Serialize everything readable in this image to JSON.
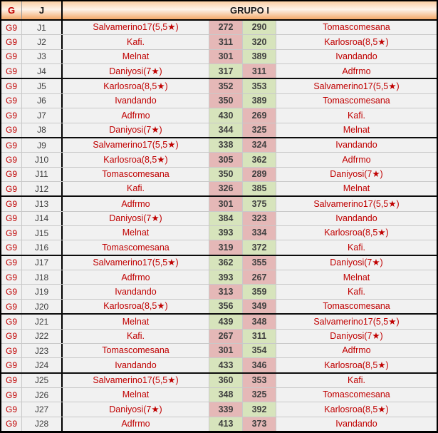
{
  "table": {
    "header": {
      "col_g": "G",
      "col_j": "J",
      "group_title": "GRUPO I"
    },
    "colors": {
      "name_text": "#c00000",
      "score_text": "#3f3f3f",
      "win_bg": "#d7e4bc",
      "loss_bg": "#e5b8b7",
      "header_orange": "#f3a868",
      "row_bg": "#f1f1f1",
      "grid_line": "#c9c9c9",
      "block_line": "#000000"
    },
    "rows": [
      {
        "g": "G9",
        "j": "J1",
        "home": "Salvamerino17(5,5★)",
        "home_score": "272",
        "away_score": "290",
        "away": "Tomascomesana",
        "home_result": "loss",
        "away_result": "win"
      },
      {
        "g": "G9",
        "j": "J2",
        "home": "Kafi.",
        "home_score": "311",
        "away_score": "320",
        "away": "Karlosroa(8,5★)",
        "home_result": "loss",
        "away_result": "win"
      },
      {
        "g": "G9",
        "j": "J3",
        "home": "Melnat",
        "home_score": "301",
        "away_score": "389",
        "away": "Ivandando",
        "home_result": "loss",
        "away_result": "win"
      },
      {
        "g": "G9",
        "j": "J4",
        "home": "Daniyosi(7★)",
        "home_score": "317",
        "away_score": "311",
        "away": "Adfrmo",
        "home_result": "win",
        "away_result": "loss"
      },
      {
        "g": "G9",
        "j": "J5",
        "home": "Karlosroa(8,5★)",
        "home_score": "352",
        "away_score": "353",
        "away": "Salvamerino17(5,5★)",
        "home_result": "loss",
        "away_result": "win"
      },
      {
        "g": "G9",
        "j": "J6",
        "home": "Ivandando",
        "home_score": "350",
        "away_score": "389",
        "away": "Tomascomesana",
        "home_result": "loss",
        "away_result": "win"
      },
      {
        "g": "G9",
        "j": "J7",
        "home": "Adfrmo",
        "home_score": "430",
        "away_score": "269",
        "away": "Kafi.",
        "home_result": "win",
        "away_result": "loss"
      },
      {
        "g": "G9",
        "j": "J8",
        "home": "Daniyosi(7★)",
        "home_score": "344",
        "away_score": "325",
        "away": "Melnat",
        "home_result": "win",
        "away_result": "loss"
      },
      {
        "g": "G9",
        "j": "J9",
        "home": "Salvamerino17(5,5★)",
        "home_score": "338",
        "away_score": "324",
        "away": "Ivandando",
        "home_result": "win",
        "away_result": "loss"
      },
      {
        "g": "G9",
        "j": "J10",
        "home": "Karlosroa(8,5★)",
        "home_score": "305",
        "away_score": "362",
        "away": "Adfrmo",
        "home_result": "loss",
        "away_result": "win"
      },
      {
        "g": "G9",
        "j": "J11",
        "home": "Tomascomesana",
        "home_score": "350",
        "away_score": "289",
        "away": "Daniyosi(7★)",
        "home_result": "win",
        "away_result": "loss"
      },
      {
        "g": "G9",
        "j": "J12",
        "home": "Kafi.",
        "home_score": "326",
        "away_score": "385",
        "away": "Melnat",
        "home_result": "loss",
        "away_result": "win"
      },
      {
        "g": "G9",
        "j": "J13",
        "home": "Adfrmo",
        "home_score": "301",
        "away_score": "375",
        "away": "Salvamerino17(5,5★)",
        "home_result": "loss",
        "away_result": "win"
      },
      {
        "g": "G9",
        "j": "J14",
        "home": "Daniyosi(7★)",
        "home_score": "384",
        "away_score": "323",
        "away": "Ivandando",
        "home_result": "win",
        "away_result": "loss"
      },
      {
        "g": "G9",
        "j": "J15",
        "home": "Melnat",
        "home_score": "393",
        "away_score": "334",
        "away": "Karlosroa(8,5★)",
        "home_result": "win",
        "away_result": "loss"
      },
      {
        "g": "G9",
        "j": "J16",
        "home": "Tomascomesana",
        "home_score": "319",
        "away_score": "372",
        "away": "Kafi.",
        "home_result": "loss",
        "away_result": "win"
      },
      {
        "g": "G9",
        "j": "J17",
        "home": "Salvamerino17(5,5★)",
        "home_score": "362",
        "away_score": "355",
        "away": "Daniyosi(7★)",
        "home_result": "win",
        "away_result": "loss"
      },
      {
        "g": "G9",
        "j": "J18",
        "home": "Adfrmo",
        "home_score": "393",
        "away_score": "267",
        "away": "Melnat",
        "home_result": "win",
        "away_result": "loss"
      },
      {
        "g": "G9",
        "j": "J19",
        "home": "Ivandando",
        "home_score": "313",
        "away_score": "359",
        "away": "Kafi.",
        "home_result": "loss",
        "away_result": "win"
      },
      {
        "g": "G9",
        "j": "J20",
        "home": "Karlosroa(8,5★)",
        "home_score": "356",
        "away_score": "349",
        "away": "Tomascomesana",
        "home_result": "win",
        "away_result": "loss"
      },
      {
        "g": "G9",
        "j": "J21",
        "home": "Melnat",
        "home_score": "439",
        "away_score": "348",
        "away": "Salvamerino17(5,5★)",
        "home_result": "win",
        "away_result": "loss"
      },
      {
        "g": "G9",
        "j": "J22",
        "home": "Kafi.",
        "home_score": "267",
        "away_score": "311",
        "away": "Daniyosi(7★)",
        "home_result": "loss",
        "away_result": "win"
      },
      {
        "g": "G9",
        "j": "J23",
        "home": "Tomascomesana",
        "home_score": "301",
        "away_score": "354",
        "away": "Adfrmo",
        "home_result": "loss",
        "away_result": "win"
      },
      {
        "g": "G9",
        "j": "J24",
        "home": "Ivandando",
        "home_score": "433",
        "away_score": "346",
        "away": "Karlosroa(8,5★)",
        "home_result": "win",
        "away_result": "loss"
      },
      {
        "g": "G9",
        "j": "J25",
        "home": "Salvamerino17(5,5★)",
        "home_score": "360",
        "away_score": "353",
        "away": "Kafi.",
        "home_result": "win",
        "away_result": "loss"
      },
      {
        "g": "G9",
        "j": "J26",
        "home": "Melnat",
        "home_score": "348",
        "away_score": "325",
        "away": "Tomascomesana",
        "home_result": "win",
        "away_result": "loss"
      },
      {
        "g": "G9",
        "j": "J27",
        "home": "Daniyosi(7★)",
        "home_score": "339",
        "away_score": "392",
        "away": "Karlosroa(8,5★)",
        "home_result": "loss",
        "away_result": "win"
      },
      {
        "g": "G9",
        "j": "J28",
        "home": "Adfrmo",
        "home_score": "413",
        "away_score": "373",
        "away": "Ivandando",
        "home_result": "win",
        "away_result": "loss"
      }
    ]
  }
}
